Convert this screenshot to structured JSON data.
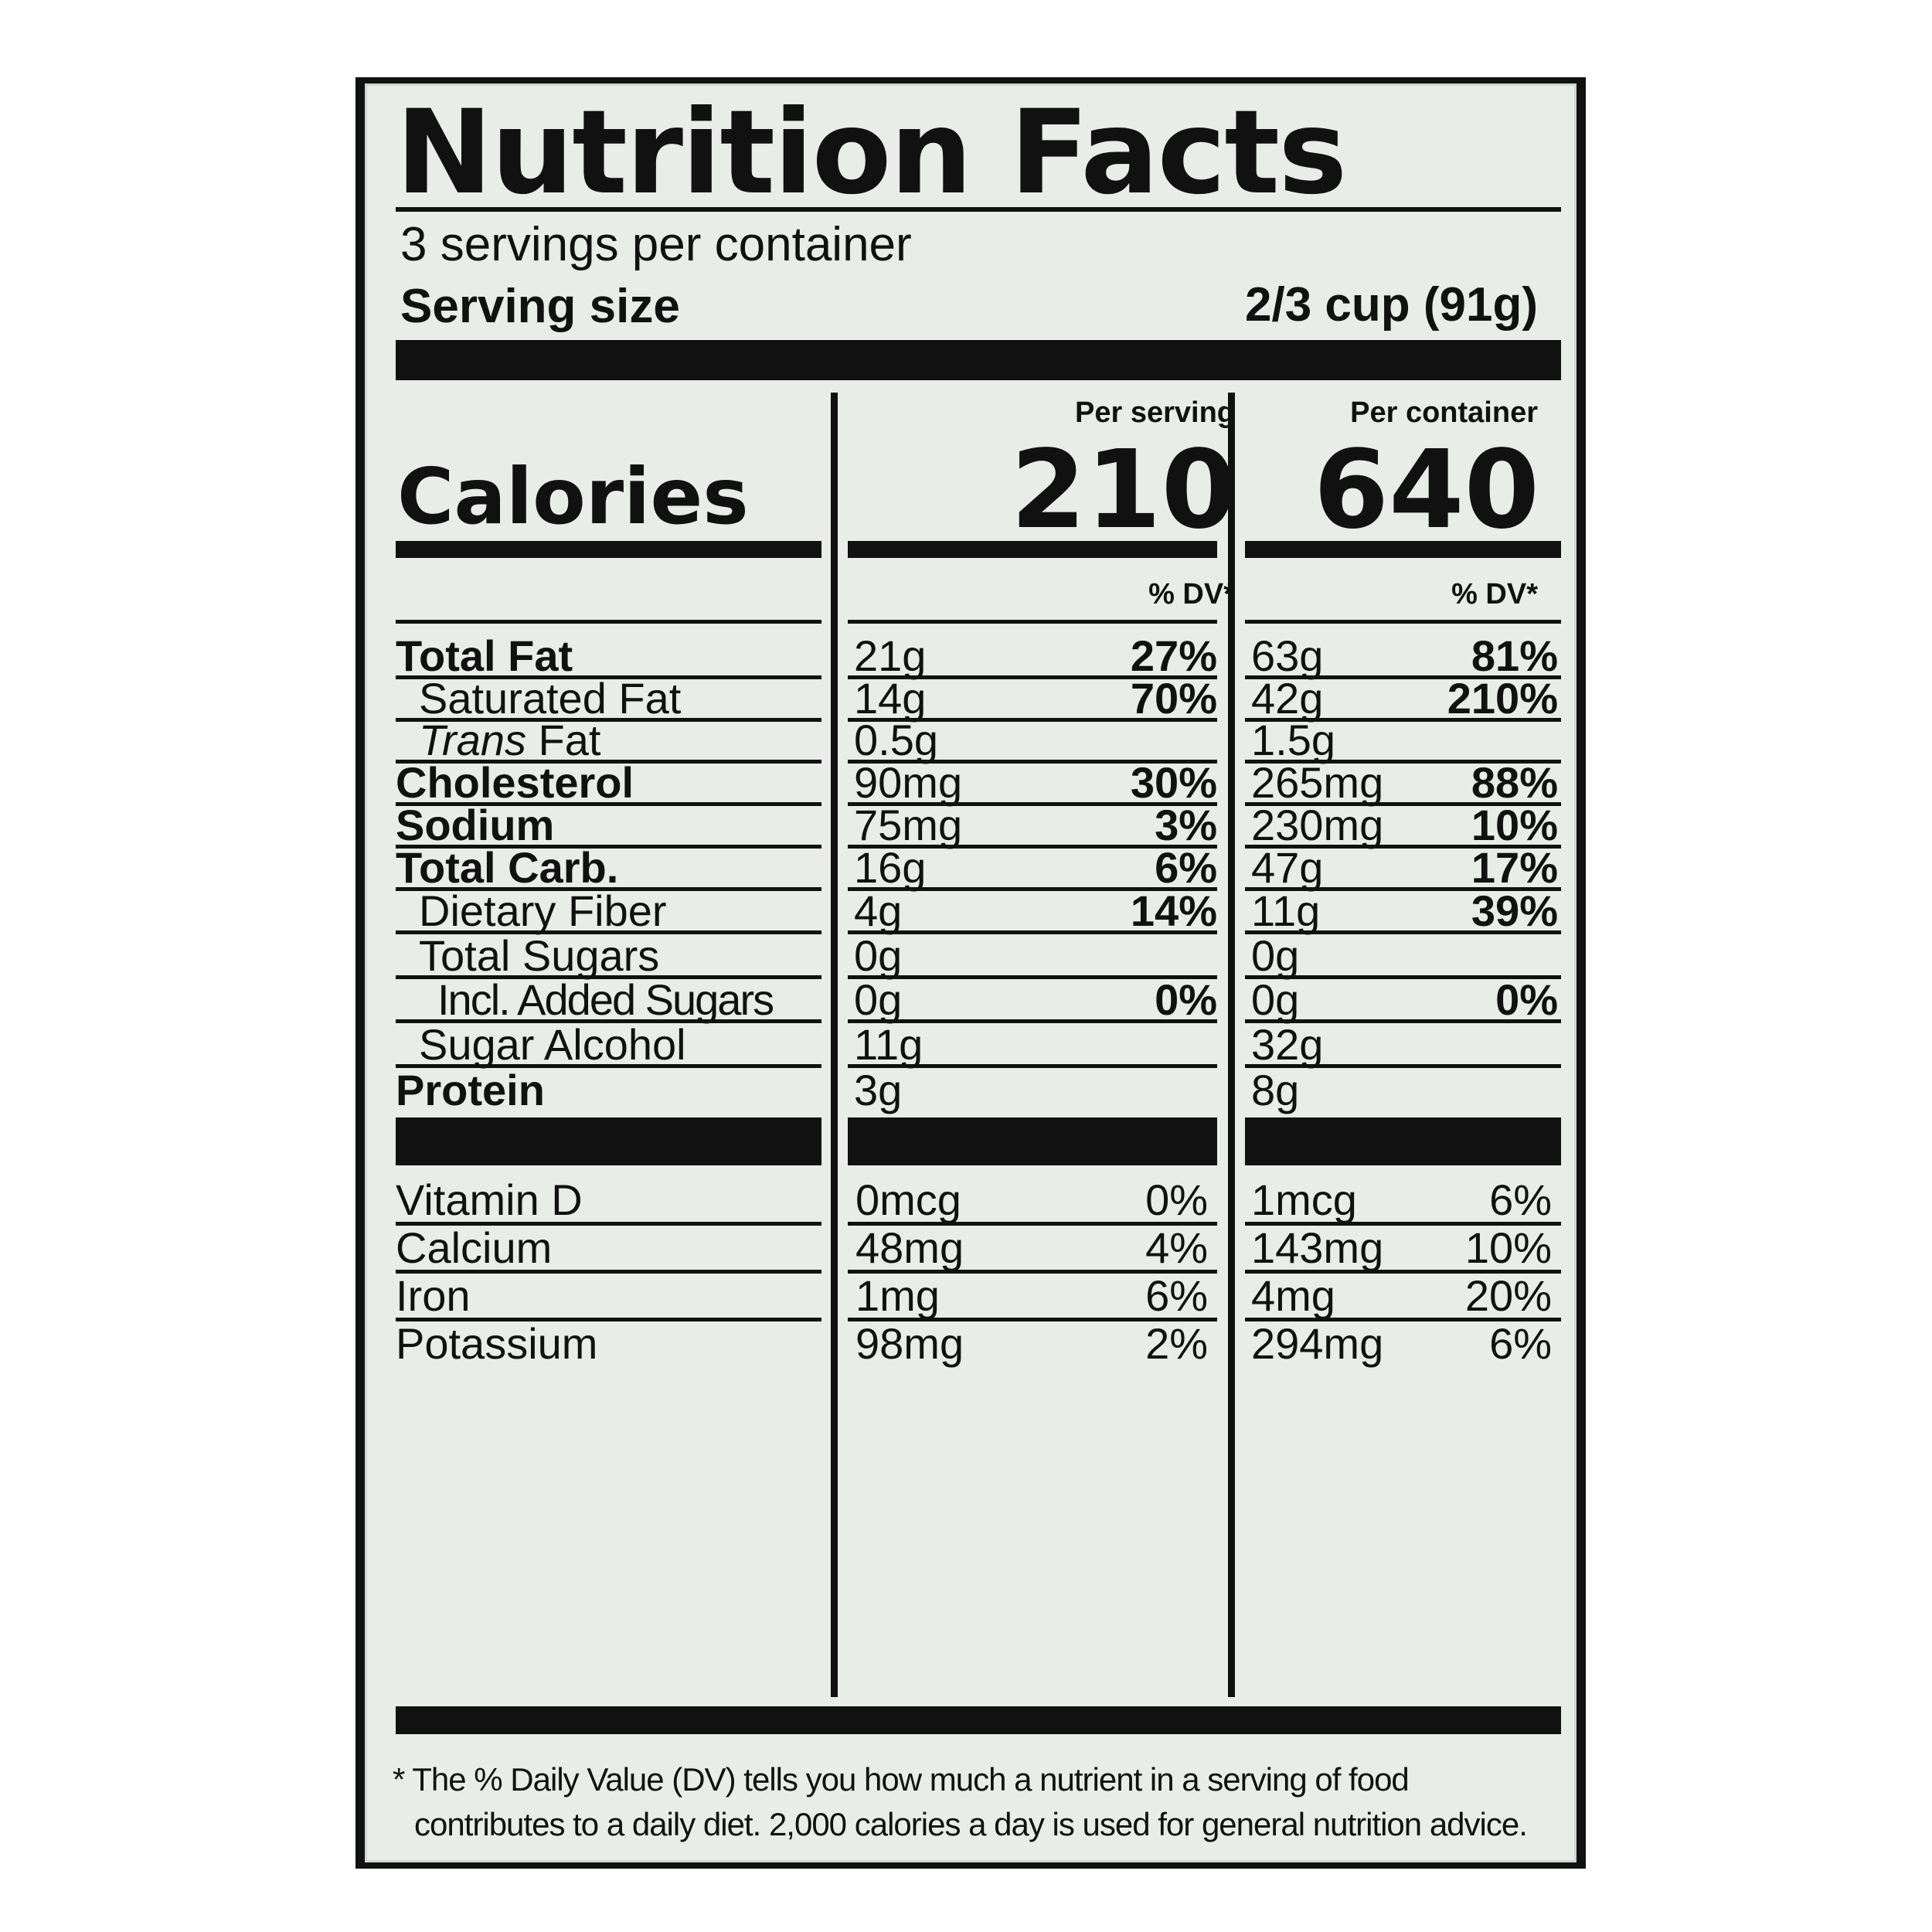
{
  "title": "Nutrition Facts",
  "servings_per_container": "3 servings per container",
  "serving_size_label": "Serving size",
  "serving_size_value": "2/3 cup (91g)",
  "columns": {
    "per_serving": "Per serving",
    "per_container": "Per container"
  },
  "calories": {
    "label": "Calories",
    "per_serving": "210",
    "per_container": "640"
  },
  "dv_header": "% DV*",
  "nutrients": [
    {
      "label": "Total Fat",
      "serv_amt": "21g",
      "serv_dv": "27%",
      "cont_amt": "63g",
      "cont_dv": "81%"
    },
    {
      "label": "Saturated Fat",
      "serv_amt": "14g",
      "serv_dv": "70%",
      "cont_amt": "42g",
      "cont_dv": "210%"
    },
    {
      "label_italic": "Trans",
      "label_rest": " Fat",
      "serv_amt": "0.5g",
      "serv_dv": "",
      "cont_amt": "1.5g",
      "cont_dv": ""
    },
    {
      "label": "Cholesterol",
      "serv_amt": "90mg",
      "serv_dv": "30%",
      "cont_amt": "265mg",
      "cont_dv": "88%"
    },
    {
      "label": "Sodium",
      "serv_amt": "75mg",
      "serv_dv": "3%",
      "cont_amt": "230mg",
      "cont_dv": "10%"
    },
    {
      "label": "Total Carb.",
      "serv_amt": "16g",
      "serv_dv": "6%",
      "cont_amt": "47g",
      "cont_dv": "17%"
    },
    {
      "label": "Dietary Fiber",
      "serv_amt": "4g",
      "serv_dv": "14%",
      "cont_amt": "11g",
      "cont_dv": "39%"
    },
    {
      "label": "Total Sugars",
      "serv_amt": "0g",
      "serv_dv": "",
      "cont_amt": "0g",
      "cont_dv": ""
    },
    {
      "label": "Incl. Added Sugars",
      "serv_amt": "0g",
      "serv_dv": "0%",
      "cont_amt": "0g",
      "cont_dv": "0%"
    },
    {
      "label": "Sugar Alcohol",
      "serv_amt": "11g",
      "serv_dv": "",
      "cont_amt": "32g",
      "cont_dv": ""
    },
    {
      "label": "Protein",
      "serv_amt": "3g",
      "serv_dv": "",
      "cont_amt": "8g",
      "cont_dv": ""
    }
  ],
  "vitamins": [
    {
      "label": "Vitamin D",
      "serv_amt": "0mcg",
      "serv_dv": "0%",
      "cont_amt": "1mcg",
      "cont_dv": "6%"
    },
    {
      "label": "Calcium",
      "serv_amt": "48mg",
      "serv_dv": "4%",
      "cont_amt": "143mg",
      "cont_dv": "10%"
    },
    {
      "label": "Iron",
      "serv_amt": "1mg",
      "serv_dv": "6%",
      "cont_amt": "4mg",
      "cont_dv": "20%"
    },
    {
      "label": "Potassium",
      "serv_amt": "98mg",
      "serv_dv": "2%",
      "cont_amt": "294mg",
      "cont_dv": "6%"
    }
  ],
  "footnote": {
    "line1": "* The % Daily Value (DV) tells you how much a nutrient in a serving of food",
    "line2": "contributes to a daily diet. 2,000 calories a day is used for general nutrition advice."
  }
}
